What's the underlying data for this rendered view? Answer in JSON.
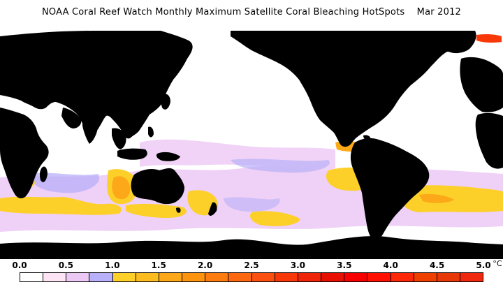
{
  "title": "NOAA Coral Reef Watch Monthly Maximum Satellite Coral Bleaching HotSpots    Mar 2012",
  "legend": {
    "tick_labels": [
      "0.0",
      "0.5",
      "1.0",
      "1.5",
      "2.0",
      "2.5",
      "3.0",
      "3.5",
      "4.0",
      "4.5",
      "5.0"
    ],
    "unit": "°C",
    "colors": [
      "#ffffff",
      "#fce4f4",
      "#ecc8f4",
      "#b8b0f8",
      "#fcd028",
      "#fcbc20",
      "#fca818",
      "#fc9410",
      "#fc7c10",
      "#fc6810",
      "#fc5010",
      "#f83808",
      "#f02408",
      "#e81000",
      "#f80000",
      "#ff1000",
      "#fc2808",
      "#f04000",
      "#e83808",
      "#f02810"
    ]
  },
  "map_colors": {
    "land": "#000000",
    "ocean": "#ffffff",
    "lavender": "#ecc8f4",
    "purple": "#b8b0f8",
    "yellow": "#fcd028",
    "orange": "#fca818",
    "red": "#f83808"
  }
}
